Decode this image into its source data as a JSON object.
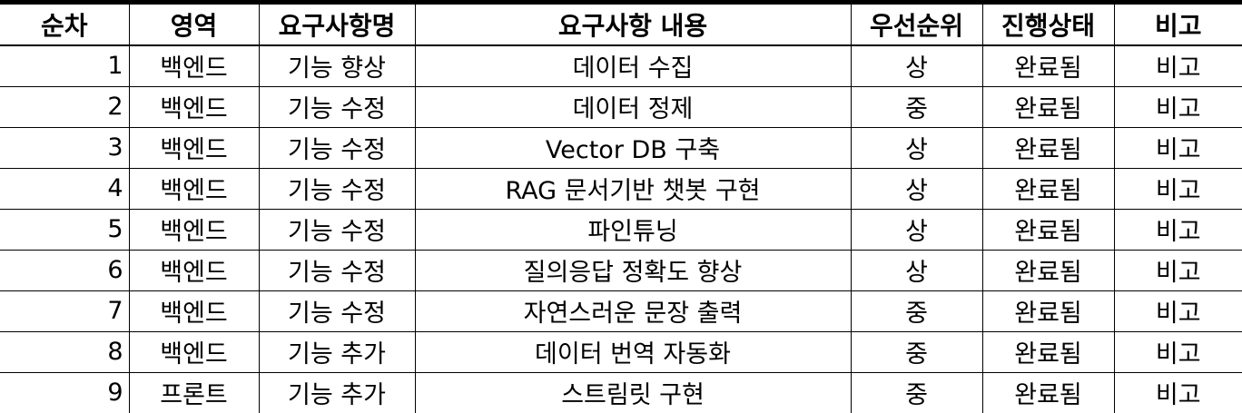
{
  "table": {
    "headers": [
      "순차",
      "영역",
      "요구사항명",
      "요구사항 내용",
      "우선순위",
      "진행상태",
      "비고"
    ],
    "rows": [
      [
        "1",
        "백엔드",
        "기능 향상",
        "데이터 수집",
        "상",
        "완료됨",
        "비고"
      ],
      [
        "2",
        "백엔드",
        "기능 수정",
        "데이터 정제",
        "중",
        "완료됨",
        "비고"
      ],
      [
        "3",
        "백엔드",
        "기능 수정",
        "Vector DB 구축",
        "상",
        "완료됨",
        "비고"
      ],
      [
        "4",
        "백엔드",
        "기능 수정",
        "RAG 문서기반 챗봇 구현",
        "상",
        "완료됨",
        "비고"
      ],
      [
        "5",
        "백엔드",
        "기능 수정",
        "파인튜닝",
        "상",
        "완료됨",
        "비고"
      ],
      [
        "6",
        "백엔드",
        "기능 수정",
        "질의응답 정확도 향상",
        "상",
        "완료됨",
        "비고"
      ],
      [
        "7",
        "백엔드",
        "기능 수정",
        "자연스러운 문장 출력",
        "중",
        "완료됨",
        "비고"
      ],
      [
        "8",
        "백엔드",
        "기능 추가",
        "데이터 번역 자동화",
        "중",
        "완료됨",
        "비고"
      ],
      [
        "9",
        "프론트",
        "기능 추가",
        "스트림릿 구현",
        "중",
        "완료됨",
        "비고"
      ]
    ]
  }
}
